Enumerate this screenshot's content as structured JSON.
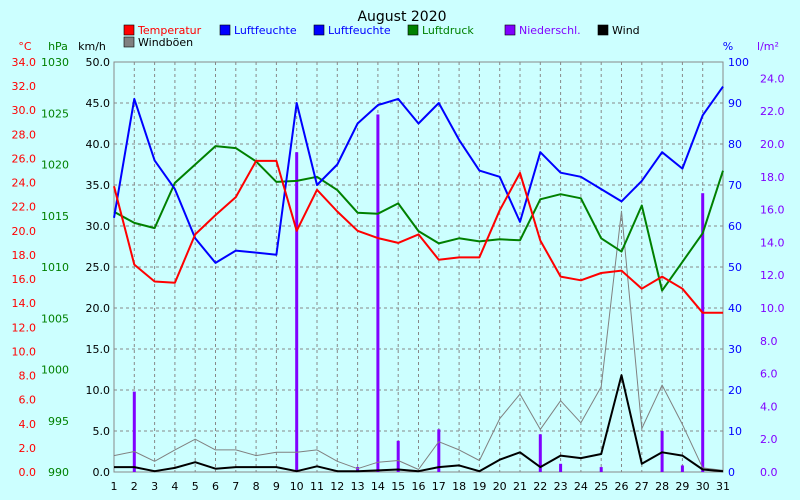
{
  "chart_data": {
    "type": "line",
    "title": "August 2020",
    "days": [
      1,
      2,
      3,
      4,
      5,
      6,
      7,
      8,
      9,
      10,
      11,
      12,
      13,
      14,
      15,
      16,
      17,
      18,
      19,
      20,
      21,
      22,
      23,
      24,
      25,
      26,
      27,
      28,
      29,
      30,
      31
    ],
    "legend": [
      {
        "name": "Temperatur",
        "color": "#ff0000"
      },
      {
        "name": "Luftfeuchte",
        "color": "#0000ff"
      },
      {
        "name": "Luftfeuchte",
        "color": "#0000ff"
      },
      {
        "name": "Luftdruck",
        "color": "#008000"
      },
      {
        "name": "Niederschl.",
        "color": "#8000ff"
      },
      {
        "name": "Wind",
        "color": "#000000"
      },
      {
        "name": "Windböen",
        "color": "#808080"
      }
    ],
    "axes": {
      "temp": {
        "unit": "°C",
        "min": 0,
        "max": 34,
        "step": 2,
        "color": "#ff0000"
      },
      "pressure": {
        "unit": "hPa",
        "min": 990,
        "max": 1030,
        "step": 5,
        "color": "#008000"
      },
      "wind": {
        "unit": "km/h",
        "min": 0,
        "max": 50,
        "step": 5,
        "color": "#000000"
      },
      "humidity": {
        "unit": "%",
        "min": 0,
        "max": 100,
        "step": 10,
        "color": "#0000ff"
      },
      "rain": {
        "unit": "l/m²",
        "min": 0,
        "max": 25,
        "step": 2,
        "color": "#8000ff"
      }
    },
    "grid": true,
    "series": {
      "temperature": [
        23.7,
        17.2,
        15.8,
        15.7,
        19.7,
        21.3,
        22.8,
        25.8,
        25.8,
        20.0,
        23.4,
        21.6,
        20.0,
        19.4,
        19.0,
        19.7,
        17.6,
        17.8,
        17.8,
        21.7,
        24.8,
        19.2,
        16.2,
        15.9,
        16.5,
        16.7,
        15.2,
        16.2,
        15.2,
        13.2,
        13.2
      ],
      "humidity": [
        62,
        91,
        76,
        69,
        57,
        51,
        54,
        53.5,
        53,
        90,
        70,
        75,
        85,
        89.5,
        91,
        85,
        90,
        81,
        73.5,
        72,
        61,
        78,
        73,
        72,
        69,
        66,
        71,
        78,
        74,
        87,
        94
      ],
      "pressure": [
        1015.4,
        1014.3,
        1013.8,
        1018.2,
        1020.0,
        1021.8,
        1021.6,
        1020.3,
        1018.3,
        1018.4,
        1018.8,
        1017.5,
        1015.3,
        1015.2,
        1016.2,
        1013.5,
        1012.3,
        1012.8,
        1012.5,
        1012.7,
        1012.6,
        1016.6,
        1017.1,
        1016.7,
        1012.8,
        1011.5,
        1016.0,
        1007.7,
        1010.5,
        1013.3,
        1019.4
      ],
      "rain": [
        0,
        4.9,
        0,
        0,
        0,
        0,
        0,
        0,
        0,
        19.5,
        0,
        0,
        0.3,
        21.8,
        1.9,
        0,
        2.6,
        0,
        0,
        0,
        0,
        2.3,
        0.5,
        0,
        0.3,
        0,
        0,
        2.5,
        0.4,
        17.0,
        0
      ],
      "wind": [
        0.6,
        0.6,
        0.1,
        0.5,
        1.2,
        0.4,
        0.6,
        0.6,
        0.6,
        0.1,
        0.7,
        0.1,
        0.1,
        0.2,
        0.3,
        0.1,
        0.6,
        0.8,
        0.1,
        1.5,
        2.4,
        0.6,
        2.0,
        1.7,
        2.2,
        11.8,
        1.0,
        2.4,
        2.0,
        0.3,
        0.1
      ],
      "gusts": [
        2.0,
        2.5,
        1.3,
        2.7,
        4.0,
        2.7,
        2.7,
        2.0,
        2.4,
        2.4,
        2.7,
        1.3,
        0.4,
        1.2,
        1.4,
        0.3,
        3.7,
        2.7,
        1.4,
        6.5,
        9.5,
        5.2,
        8.7,
        6.0,
        10.4,
        31.8,
        5.3,
        10.6,
        5.8,
        0.5,
        0.2
      ]
    }
  }
}
